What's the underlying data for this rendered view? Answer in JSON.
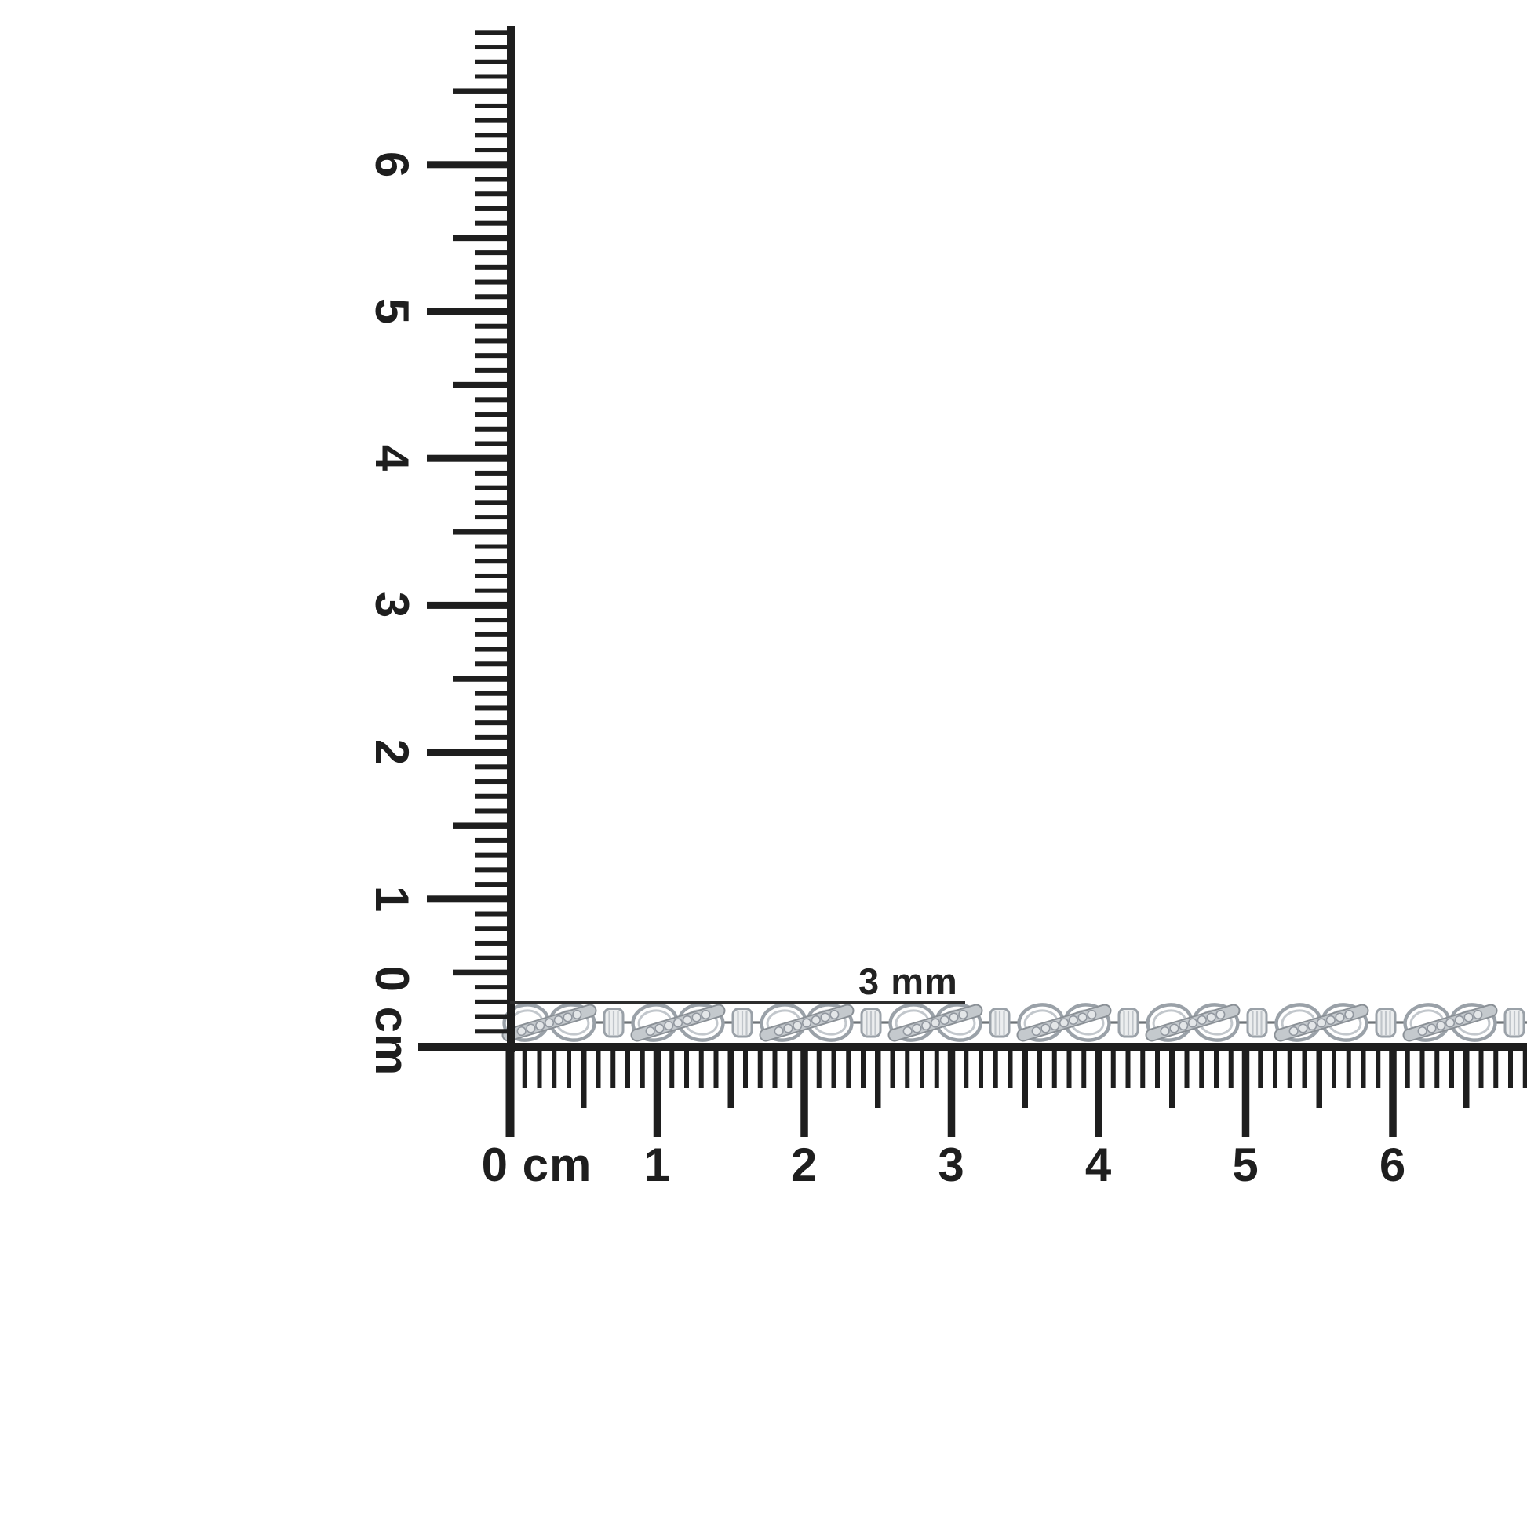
{
  "colors": {
    "background": "#ffffff",
    "ink": "#1e1e1e",
    "annotation_ink": "#2d2d2d"
  },
  "annotation": {
    "label": "3 mm"
  },
  "rulers": {
    "vertical": {
      "zero_label": "0 cm",
      "cm_labels": [
        "1",
        "2",
        "3",
        "4",
        "5",
        "6"
      ],
      "mm_tick_count": 69,
      "unit": "cm"
    },
    "horizontal": {
      "zero_label": "0 cm",
      "cm_labels": [
        "1",
        "2",
        "3",
        "4",
        "5",
        "6"
      ],
      "mm_tick_count": 69,
      "unit": "cm"
    }
  },
  "bracelet": {
    "type": "infinity-link-diamond-bracelet",
    "links": 8,
    "spacer_beads": 8,
    "diamonds_per_link": 7,
    "colors": {
      "outline": "#9aa1a8",
      "outline_inner": "#c2c7cc",
      "band": "#c4c9cd",
      "band_edge": "#8a9096",
      "diamond": "#e3e6e8",
      "diamond_edge": "#9298a0",
      "connector": "#6e7378",
      "barrel_fill": "#eceeef",
      "barrel_rib": "#c0c5ca",
      "loop_fill": "#ffffff"
    }
  }
}
